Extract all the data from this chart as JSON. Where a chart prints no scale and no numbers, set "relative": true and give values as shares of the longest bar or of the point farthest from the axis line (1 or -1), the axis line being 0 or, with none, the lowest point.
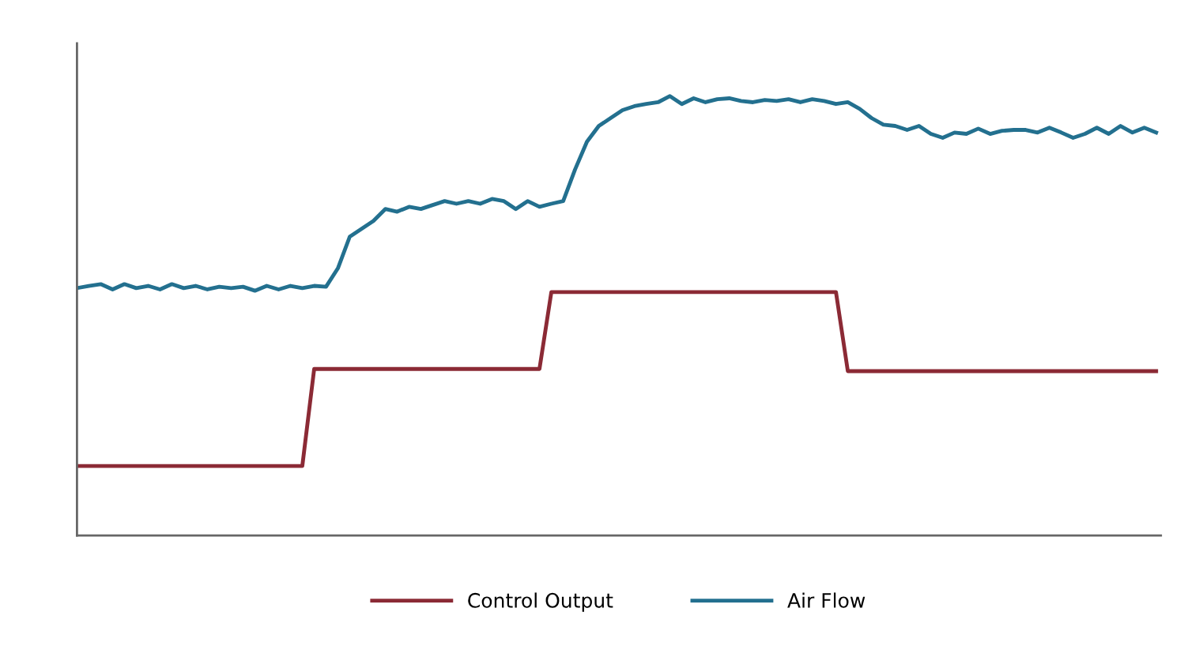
{
  "chart_data": {
    "type": "line",
    "relative": true,
    "legend": "bottom",
    "grid": false,
    "categories": [
      null,
      null,
      null,
      null,
      null,
      null,
      null,
      null,
      null,
      null,
      null,
      null,
      null,
      null,
      null,
      null,
      null,
      null,
      null,
      null,
      null,
      null,
      null,
      null,
      null,
      null,
      null,
      null,
      null,
      null,
      null,
      null,
      null,
      null,
      null,
      null,
      null,
      null,
      null,
      null,
      null,
      null,
      null,
      null,
      null,
      null,
      null,
      null,
      null,
      null,
      null,
      null,
      null,
      null,
      null,
      null,
      null,
      null,
      null,
      null,
      null,
      null,
      null,
      null,
      null,
      null,
      null,
      null,
      null,
      null,
      null,
      null,
      null,
      null,
      null,
      null,
      null,
      null,
      null,
      null,
      null,
      null,
      null,
      null,
      null,
      null,
      null,
      null,
      null,
      null,
      null,
      null
    ],
    "series": [
      {
        "name": "Control Output",
        "color": "#8b2a35",
        "values": [
          0.158,
          0.158,
          0.158,
          0.158,
          0.158,
          0.158,
          0.158,
          0.158,
          0.158,
          0.158,
          0.158,
          0.158,
          0.158,
          0.158,
          0.158,
          0.158,
          0.158,
          0.158,
          0.158,
          0.158,
          0.379,
          0.379,
          0.379,
          0.379,
          0.379,
          0.379,
          0.379,
          0.379,
          0.379,
          0.379,
          0.379,
          0.379,
          0.379,
          0.379,
          0.379,
          0.379,
          0.379,
          0.379,
          0.379,
          0.379,
          0.554,
          0.554,
          0.554,
          0.554,
          0.554,
          0.554,
          0.554,
          0.554,
          0.554,
          0.554,
          0.554,
          0.554,
          0.554,
          0.554,
          0.554,
          0.554,
          0.554,
          0.554,
          0.554,
          0.554,
          0.554,
          0.554,
          0.554,
          0.554,
          0.554,
          0.374,
          0.374,
          0.374,
          0.374,
          0.374,
          0.374,
          0.374,
          0.374,
          0.374,
          0.374,
          0.374,
          0.374,
          0.374,
          0.374,
          0.374,
          0.374,
          0.374,
          0.374,
          0.374,
          0.374,
          0.374,
          0.374,
          0.374,
          0.374,
          0.374,
          0.374,
          0.374
        ]
      },
      {
        "name": "Air Flow",
        "color": "#23708f",
        "values": [
          0.563,
          0.568,
          0.572,
          0.56,
          0.572,
          0.563,
          0.568,
          0.56,
          0.572,
          0.563,
          0.568,
          0.56,
          0.566,
          0.563,
          0.566,
          0.557,
          0.568,
          0.56,
          0.568,
          0.563,
          0.568,
          0.566,
          0.608,
          0.68,
          0.698,
          0.716,
          0.743,
          0.737,
          0.748,
          0.743,
          0.752,
          0.761,
          0.755,
          0.761,
          0.755,
          0.766,
          0.761,
          0.743,
          0.761,
          0.748,
          0.755,
          0.761,
          0.833,
          0.896,
          0.932,
          0.95,
          0.968,
          0.977,
          0.982,
          0.986,
          1.0,
          0.982,
          0.995,
          0.986,
          0.993,
          0.995,
          0.989,
          0.986,
          0.991,
          0.989,
          0.993,
          0.986,
          0.993,
          0.989,
          0.982,
          0.986,
          0.971,
          0.95,
          0.935,
          0.932,
          0.923,
          0.932,
          0.914,
          0.905,
          0.917,
          0.914,
          0.926,
          0.914,
          0.921,
          0.923,
          0.923,
          0.917,
          0.928,
          0.917,
          0.905,
          0.914,
          0.928,
          0.914,
          0.932,
          0.917,
          0.928,
          0.917
        ]
      }
    ]
  }
}
